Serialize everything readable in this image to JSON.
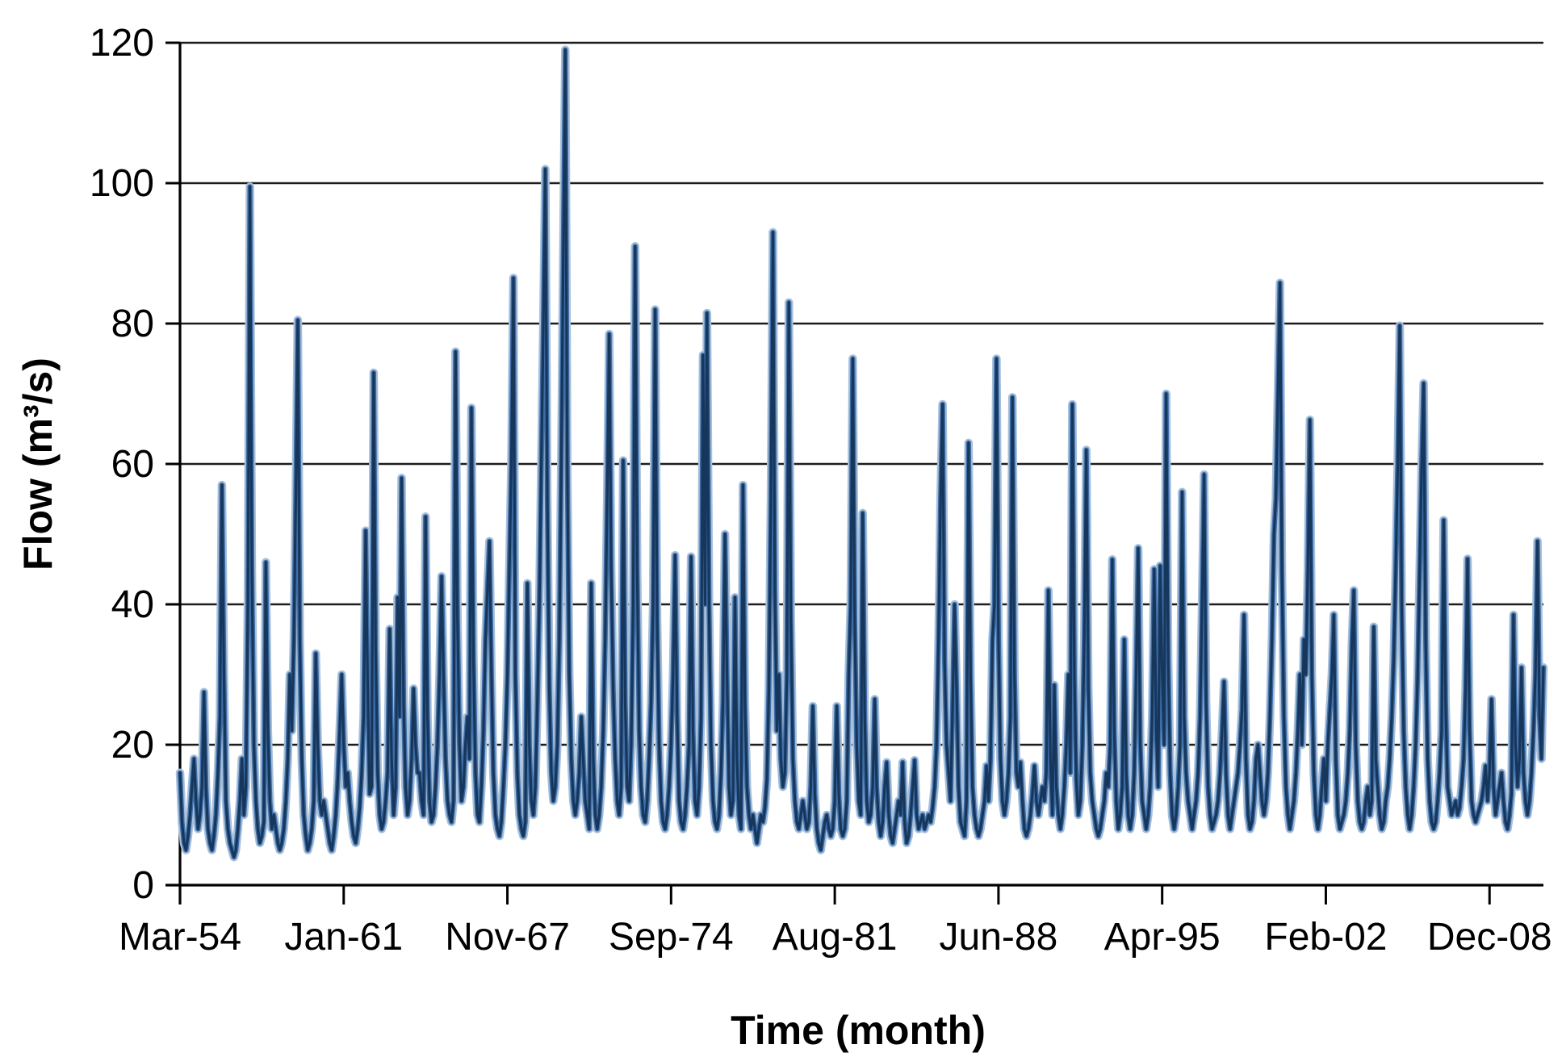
{
  "figure": {
    "background_color": "#ffffff",
    "plot_border_color": "#000000",
    "gridline_color": "#1c1c1c",
    "text_color": "#000000"
  },
  "chart_data": {
    "type": "line",
    "title": "",
    "xlabel": "Time (month)",
    "ylabel": "Flow (m³/s)",
    "legend": "none",
    "grid": "horizontal",
    "ylim": [
      0,
      120
    ],
    "y_ticks": [
      0,
      20,
      40,
      60,
      80,
      100,
      120
    ],
    "x_tick_labels": [
      "Mar-54",
      "Jan-61",
      "Nov-67",
      "Sep-74",
      "Aug-81",
      "Jun-88",
      "Apr-95",
      "Feb-02",
      "Dec-08"
    ],
    "x_months_between_ticks": 82,
    "x_start_label": "Mar-54",
    "x_end_label": "Feb-11",
    "series": [
      {
        "name": "Flow",
        "color_core": "#16365c",
        "color_mid": "#3f6ea5",
        "color_halo": "#a6bfdb",
        "values": [
          16,
          9,
          6,
          5,
          7,
          10,
          14,
          18,
          12,
          8,
          10,
          14,
          27.5,
          14,
          8,
          6,
          5,
          7,
          10,
          16,
          24,
          57,
          30,
          12,
          8,
          6,
          5,
          4,
          5,
          8,
          12,
          18,
          10,
          14,
          40,
          99.5,
          45,
          20,
          12,
          8,
          6,
          7,
          9,
          46,
          22,
          12,
          8,
          10,
          8,
          6,
          5,
          6,
          8,
          12,
          18,
          30,
          22,
          35,
          55,
          80.5,
          35,
          18,
          10,
          7,
          5,
          6,
          8,
          12,
          33,
          20,
          12,
          10,
          12,
          10,
          8,
          6,
          5,
          7,
          10,
          15,
          22,
          30,
          20,
          14,
          16,
          12,
          9,
          7,
          6,
          8,
          11,
          16,
          24,
          50.5,
          28,
          13,
          14,
          73,
          34,
          16,
          10,
          8,
          9,
          12,
          16,
          36.5,
          18,
          10,
          14,
          41,
          24,
          58,
          26,
          14,
          10,
          12,
          18,
          28,
          20,
          16,
          16,
          12,
          10,
          52.5,
          24,
          12,
          9,
          10,
          14,
          20,
          30,
          44,
          30,
          18,
          12,
          10,
          9,
          12,
          76,
          38,
          20,
          12,
          14,
          20,
          24,
          18,
          68,
          32,
          16,
          10,
          9,
          14,
          22,
          35,
          42,
          49,
          30,
          16,
          10,
          8,
          7,
          9,
          14,
          20,
          30,
          45,
          60,
          86.5,
          30,
          16,
          10,
          8,
          7,
          9,
          43,
          20,
          12,
          10,
          14,
          26,
          40,
          60,
          80,
          102,
          55,
          28,
          16,
          12,
          14,
          20,
          35,
          60,
          90,
          119,
          60,
          30,
          18,
          12,
          10,
          12,
          16,
          24,
          18,
          12,
          10,
          8,
          43,
          18,
          10,
          8,
          10,
          14,
          22,
          35,
          55,
          78.5,
          45,
          28,
          18,
          12,
          10,
          14,
          60.5,
          26,
          14,
          12,
          20,
          40,
          91,
          45,
          22,
          14,
          10,
          9,
          12,
          18,
          26,
          40,
          82,
          38,
          20,
          12,
          9,
          8,
          10,
          14,
          20,
          30,
          47,
          24,
          12,
          9,
          8,
          10,
          14,
          20,
          46.8,
          22,
          12,
          10,
          14,
          24,
          75.5,
          40,
          81.5,
          40,
          20,
          12,
          9,
          8,
          10,
          16,
          26,
          50,
          30,
          14,
          10,
          12,
          41,
          18,
          10,
          8,
          57,
          26,
          14,
          10,
          8,
          10,
          8,
          6,
          8,
          10,
          9,
          11,
          15,
          28,
          55,
          93,
          42,
          22,
          30,
          18,
          14,
          16,
          30,
          83,
          38,
          18,
          12,
          9,
          8,
          10,
          12,
          10,
          8,
          9,
          14,
          25.5,
          13,
          8,
          6,
          5,
          7,
          9,
          10,
          8,
          7,
          8,
          12,
          25.5,
          13,
          8,
          7,
          8,
          12,
          30,
          40,
          75,
          38,
          20,
          12,
          10,
          53,
          24,
          12,
          9,
          10,
          14,
          26.5,
          14,
          9,
          7,
          9,
          14,
          17.5,
          10,
          7,
          6,
          8,
          10,
          12,
          10,
          17.5,
          9,
          6,
          7,
          10,
          14,
          17.8,
          10,
          8,
          9,
          10,
          8,
          9,
          10,
          9,
          11,
          14,
          20,
          35,
          55,
          68.5,
          32,
          20,
          16,
          12,
          25,
          40,
          28,
          14,
          9,
          8,
          7,
          12,
          63,
          30,
          14,
          10,
          8,
          7,
          8,
          10,
          12,
          17,
          12,
          18,
          35,
          40,
          75,
          35,
          18,
          12,
          10,
          12,
          16,
          24,
          69.5,
          30,
          16,
          14,
          17.5,
          12,
          8,
          7,
          8,
          10,
          13,
          17,
          12,
          10,
          12,
          14,
          12,
          16,
          42,
          18,
          10,
          28.5,
          14,
          10,
          8,
          10,
          14,
          20,
          30,
          16,
          68.5,
          30,
          15,
          10,
          12,
          20,
          35,
          62,
          28,
          16,
          12,
          10,
          8,
          7,
          8,
          10,
          12,
          16,
          14,
          20,
          46.4,
          22,
          12,
          8,
          10,
          14,
          35,
          16,
          10,
          8,
          10,
          16,
          30,
          48,
          20,
          12,
          10,
          8,
          10,
          14,
          24,
          45,
          22,
          14,
          45.5,
          30,
          20,
          70,
          32,
          16,
          10,
          8,
          10,
          14,
          20,
          56,
          24,
          16,
          12,
          10,
          8,
          10,
          12,
          16,
          24,
          40,
          58.5,
          26,
          14,
          10,
          8,
          9,
          10,
          12,
          16,
          22,
          29,
          16,
          10,
          8,
          10,
          12,
          14,
          16,
          20,
          25,
          38.5,
          18,
          10,
          8,
          9,
          12,
          18,
          20,
          16,
          12,
          10,
          12,
          16,
          24,
          35,
          50,
          55,
          70,
          85.8,
          45,
          24,
          14,
          10,
          8,
          10,
          12,
          16,
          22,
          30,
          20,
          35,
          30,
          45,
          66.3,
          30,
          16,
          10,
          8,
          10,
          14,
          18,
          12,
          20,
          25,
          30,
          38.5,
          18,
          10,
          8,
          9,
          10,
          12,
          16,
          22,
          34,
          42,
          20,
          12,
          9,
          8,
          9,
          12,
          14,
          10,
          12,
          36.8,
          18,
          14,
          10,
          8,
          9,
          12,
          14,
          18,
          24,
          32,
          45,
          60,
          79.7,
          40,
          22,
          14,
          10,
          8,
          10,
          14,
          20,
          30,
          45,
          60,
          71.5,
          35,
          18,
          12,
          9,
          8,
          9,
          12,
          16,
          22,
          52,
          26,
          14,
          12,
          10,
          11,
          12,
          10,
          11,
          14,
          18,
          28,
          46.5,
          22,
          12,
          10,
          9,
          10,
          11,
          12,
          14,
          17,
          12,
          16,
          26.5,
          14,
          10,
          12,
          14,
          16,
          12,
          9,
          8,
          10,
          13,
          38.5,
          20,
          14,
          18,
          31,
          16,
          12,
          10,
          12,
          16,
          22,
          30,
          49,
          24,
          18,
          31
        ]
      }
    ]
  }
}
